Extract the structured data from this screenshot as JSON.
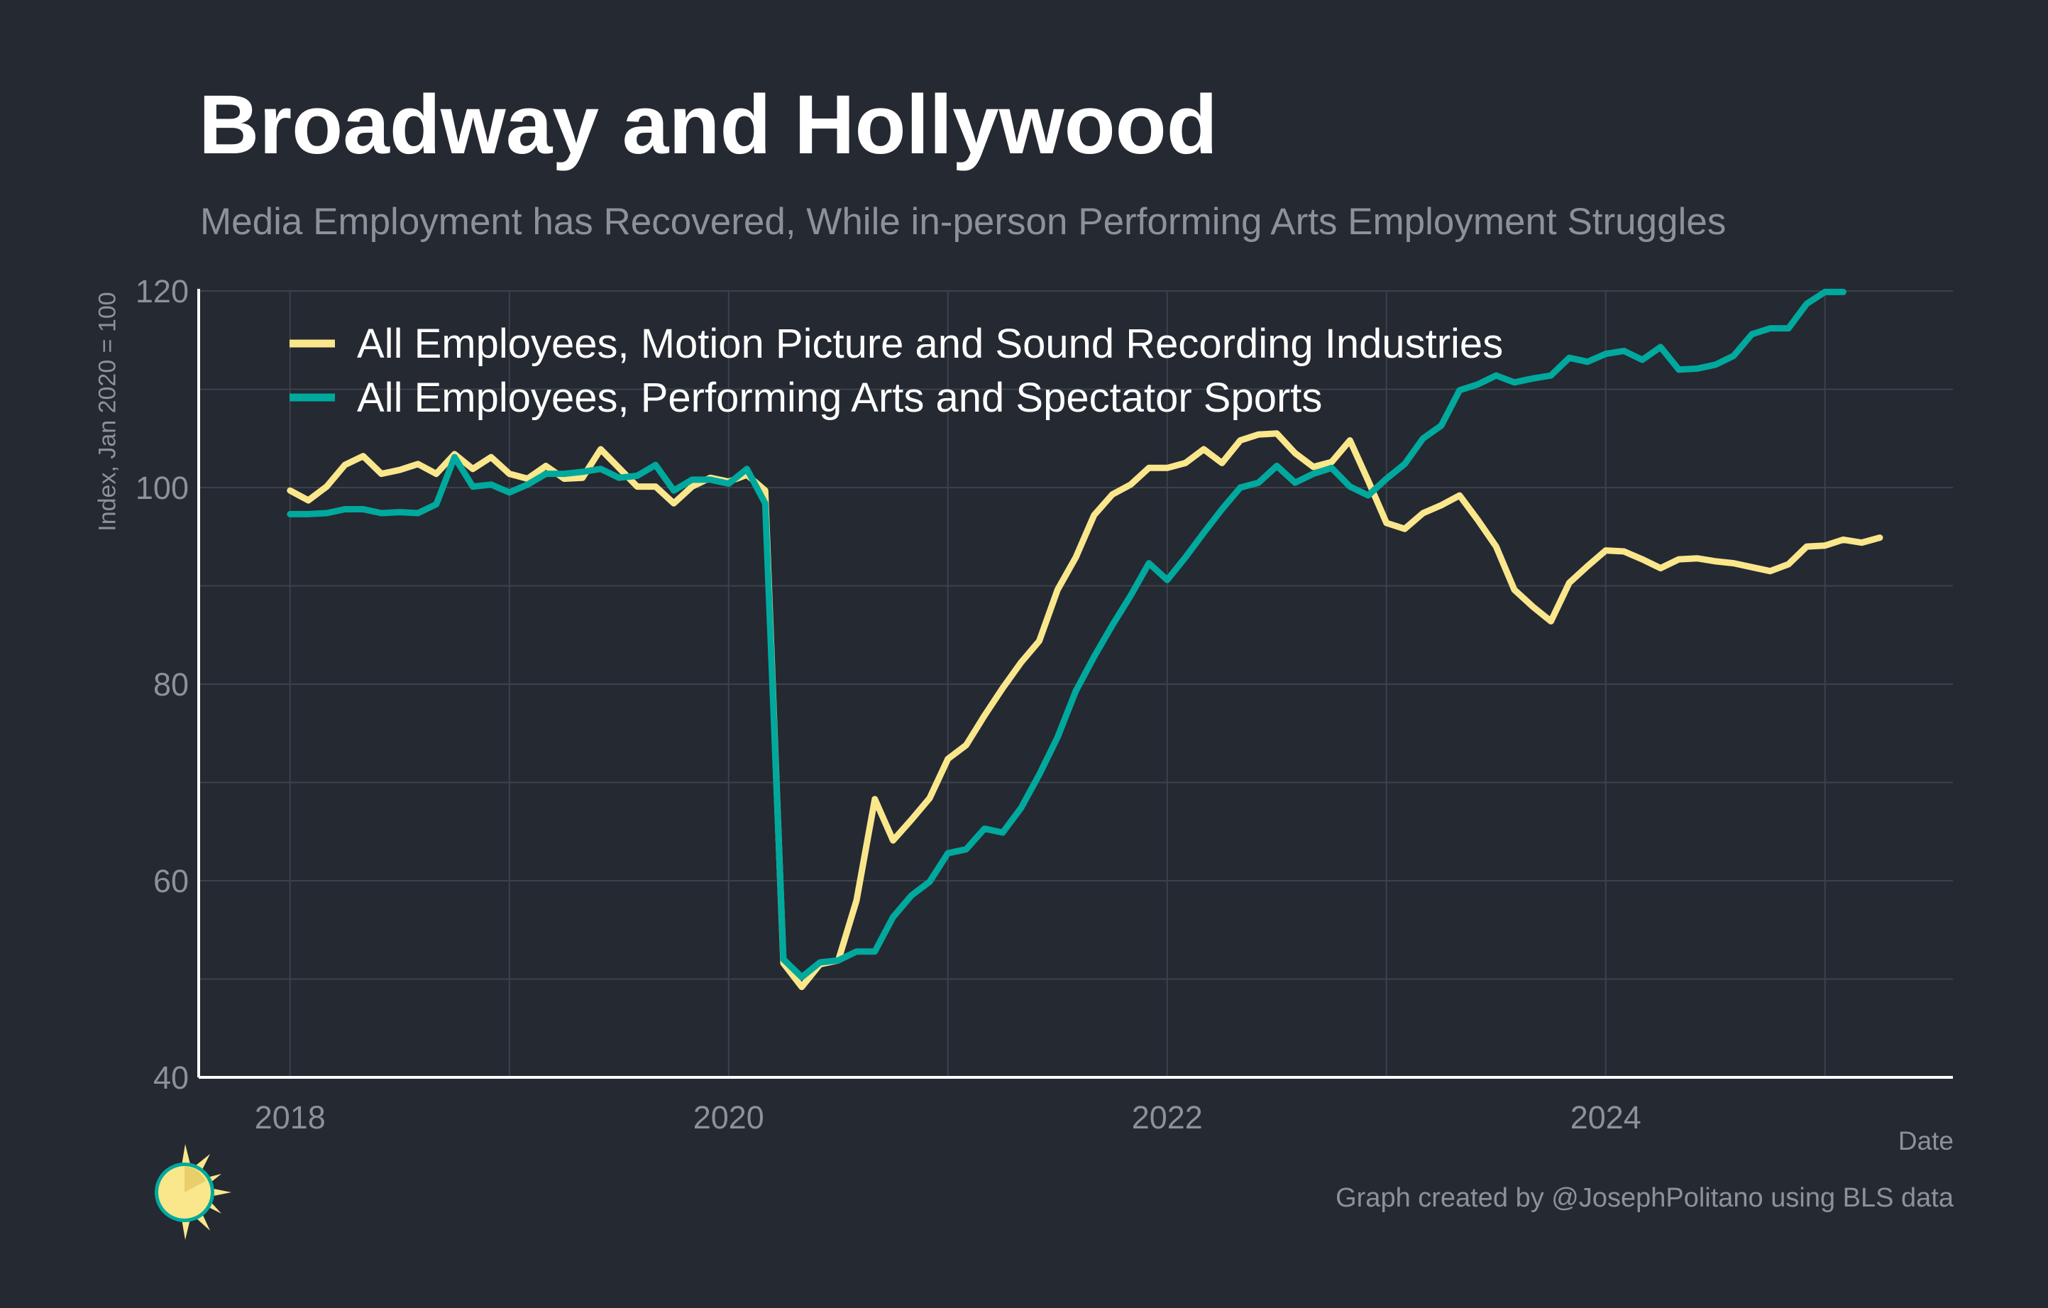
{
  "chart_data": {
    "type": "line",
    "title": "Broadway and Hollywood",
    "subtitle": "Media Employment has Recovered, While in-person Performing Arts Employment Struggles",
    "xlabel": "Date",
    "ylabel": "Index, Jan 2020 = 100",
    "caption": "Graph created by @JosephPolitano using BLS data",
    "xlim": [
      "2017-08",
      "2025-08"
    ],
    "ylim": [
      40,
      120
    ],
    "x_ticks": [
      {
        "label": "2018",
        "date": "2018-01"
      },
      {
        "label": "2020",
        "date": "2020-01"
      },
      {
        "label": "2022",
        "date": "2022-01"
      },
      {
        "label": "2024",
        "date": "2024-01"
      }
    ],
    "y_ticks": [
      40,
      60,
      80,
      100,
      120
    ],
    "grid": true,
    "legend_position": "top-left",
    "series": [
      {
        "name": "All Employees, Motion Picture and Sound Recording Industries",
        "color": "#fae78c",
        "start": "2018-01",
        "values": [
          99.7,
          98.7,
          100.1,
          102.3,
          103.2,
          101.4,
          101.8,
          102.4,
          101.4,
          103.4,
          101.9,
          103.1,
          101.4,
          100.9,
          102.2,
          100.9,
          101.0,
          103.9,
          102.0,
          100.1,
          100.1,
          98.4,
          100.1,
          101.0,
          100.6,
          101.3,
          99.7,
          51.6,
          49.2,
          51.5,
          51.9,
          58.0,
          68.3,
          64.1,
          66.2,
          68.4,
          72.4,
          73.8,
          76.8,
          79.6,
          82.2,
          84.4,
          89.6,
          92.9,
          97.2,
          99.3,
          100.3,
          102.0,
          102.0,
          102.5,
          103.9,
          102.5,
          104.8,
          105.4,
          105.5,
          103.5,
          102.1,
          102.6,
          104.8,
          100.7,
          96.4,
          95.8,
          97.4,
          98.2,
          99.2,
          96.7,
          94.0,
          89.6,
          87.9,
          86.4,
          90.3,
          92.0,
          93.6,
          93.5,
          92.7,
          91.8,
          92.7,
          92.8,
          92.5,
          92.3,
          91.9,
          91.5,
          92.2,
          94.0,
          94.1,
          94.7,
          94.4,
          94.9
        ]
      },
      {
        "name": "All Employees, Performing Arts and Spectator Sports",
        "color": "#00a99d",
        "start": "2018-01",
        "values": [
          97.3,
          97.3,
          97.4,
          97.8,
          97.8,
          97.4,
          97.5,
          97.4,
          98.3,
          103.1,
          100.1,
          100.3,
          99.5,
          100.3,
          101.4,
          101.4,
          101.6,
          101.9,
          101.0,
          101.2,
          102.3,
          99.7,
          100.8,
          100.8,
          100.4,
          101.9,
          98.4,
          52.0,
          50.2,
          51.7,
          51.9,
          52.8,
          52.8,
          56.3,
          58.5,
          59.9,
          62.8,
          63.2,
          65.3,
          64.9,
          67.4,
          70.8,
          74.6,
          79.3,
          82.8,
          86.0,
          89.0,
          92.3,
          90.6,
          92.9,
          95.4,
          97.8,
          100.0,
          100.5,
          102.2,
          100.5,
          101.4,
          102.0,
          100.1,
          99.2,
          100.9,
          102.4,
          105.0,
          106.3,
          109.9,
          110.5,
          111.4,
          110.7,
          111.1,
          111.4,
          113.2,
          112.8,
          113.6,
          113.9,
          113.0,
          114.3,
          112.0,
          112.1,
          112.5,
          113.4,
          115.6,
          116.2,
          116.2,
          118.7,
          119.9,
          119.9
        ]
      }
    ]
  }
}
